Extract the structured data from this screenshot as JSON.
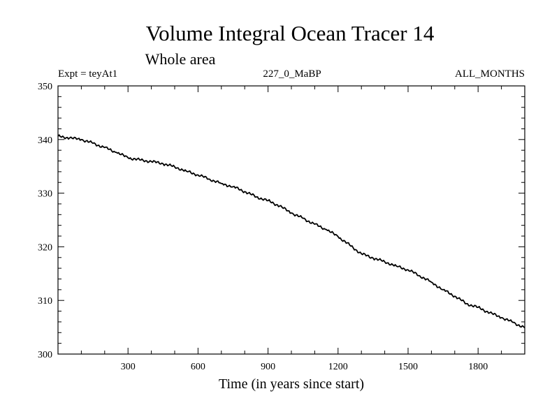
{
  "chart_data": {
    "type": "line",
    "title": "Volume Integral Ocean Tracer 14",
    "subtitle": "Whole area",
    "experiment_label": "Expt = teyAt1",
    "run_label": "227_0_MaBP",
    "period_label": "ALL_MONTHS",
    "xlabel": "Time (in years since start)",
    "ylabel": "",
    "xlim": [
      0,
      2000
    ],
    "ylim": [
      300,
      350
    ],
    "x_ticks": [
      300,
      600,
      900,
      1200,
      1500,
      1800
    ],
    "y_ticks": [
      300,
      310,
      320,
      330,
      340,
      350
    ],
    "grid": false,
    "line_color": "#000000",
    "series": [
      {
        "x": [
          0,
          50,
          100,
          150,
          200,
          250,
          300,
          350,
          400,
          450,
          500,
          550,
          600,
          650,
          700,
          750,
          800,
          850,
          900,
          950,
          1000,
          1050,
          1100,
          1150,
          1200,
          1250,
          1300,
          1350,
          1400,
          1450,
          1500,
          1550,
          1600,
          1650,
          1700,
          1750,
          1800,
          1850,
          1900,
          1950,
          2000
        ],
        "y": [
          340.6,
          340.3,
          340.0,
          339.3,
          338.5,
          337.6,
          336.6,
          336.2,
          335.9,
          335.5,
          334.9,
          334.1,
          333.4,
          332.6,
          331.8,
          331.2,
          330.3,
          329.3,
          328.6,
          327.6,
          326.3,
          325.3,
          324.2,
          323.2,
          321.9,
          320.3,
          318.7,
          317.9,
          317.2,
          316.4,
          315.7,
          314.6,
          313.4,
          312.0,
          310.8,
          309.4,
          308.7,
          307.7,
          306.8,
          305.9,
          304.9
        ]
      }
    ]
  }
}
